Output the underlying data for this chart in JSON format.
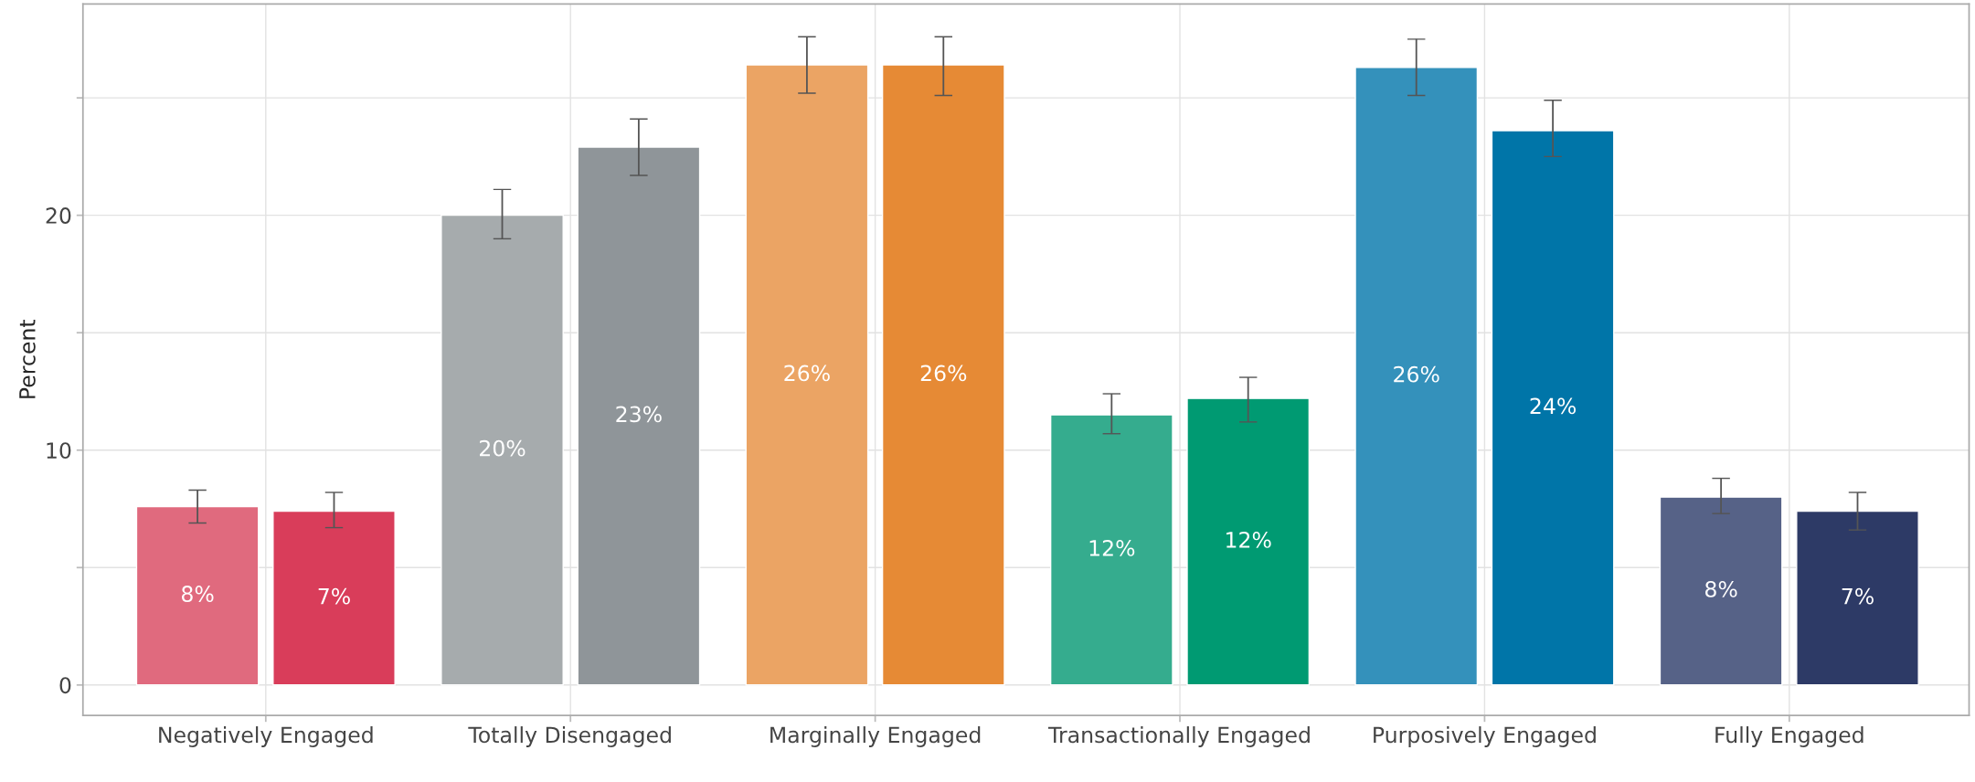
{
  "chart_data": {
    "type": "bar",
    "ylabel": "Percent",
    "categories": [
      "Negatively Engaged",
      "Totally Disengaged",
      "Marginally Engaged",
      "Transactionally Engaged",
      "Purposively Engaged",
      "Fully Engaged"
    ],
    "series": [
      {
        "colors": [
          "#e06a7e",
          "#a6abad",
          "#eba464",
          "#35ac8e",
          "#3491bb",
          "#566287"
        ],
        "values": [
          7.6,
          20.0,
          26.4,
          11.5,
          26.3,
          8.0
        ],
        "errors": [
          [
            6.9,
            8.3
          ],
          [
            19.0,
            21.1
          ],
          [
            25.2,
            27.6
          ],
          [
            10.7,
            12.4
          ],
          [
            25.1,
            27.5
          ],
          [
            7.3,
            8.8
          ]
        ],
        "value_labels": [
          "8%",
          "20%",
          "26%",
          "12%",
          "26%",
          "8%"
        ]
      },
      {
        "colors": [
          "#d93d5a",
          "#8f9599",
          "#e68a35",
          "#009a72",
          "#0075a8",
          "#2d3a66"
        ],
        "values": [
          7.4,
          22.9,
          26.4,
          12.2,
          23.6,
          7.4
        ],
        "errors": [
          [
            6.7,
            8.2
          ],
          [
            21.7,
            24.1
          ],
          [
            25.1,
            27.6
          ],
          [
            11.2,
            13.1
          ],
          [
            22.5,
            24.9
          ],
          [
            6.6,
            8.2
          ]
        ],
        "value_labels": [
          "7%",
          "23%",
          "26%",
          "12%",
          "24%",
          "7%"
        ]
      }
    ],
    "ylim": [
      -1.3,
      29.0
    ],
    "yticks": [
      0,
      {
        "value": 5,
        "label": null
      },
      10,
      {
        "value": 15,
        "label": null
      },
      20,
      {
        "value": 25,
        "label": null
      }
    ],
    "grid": true,
    "legend": false
  }
}
